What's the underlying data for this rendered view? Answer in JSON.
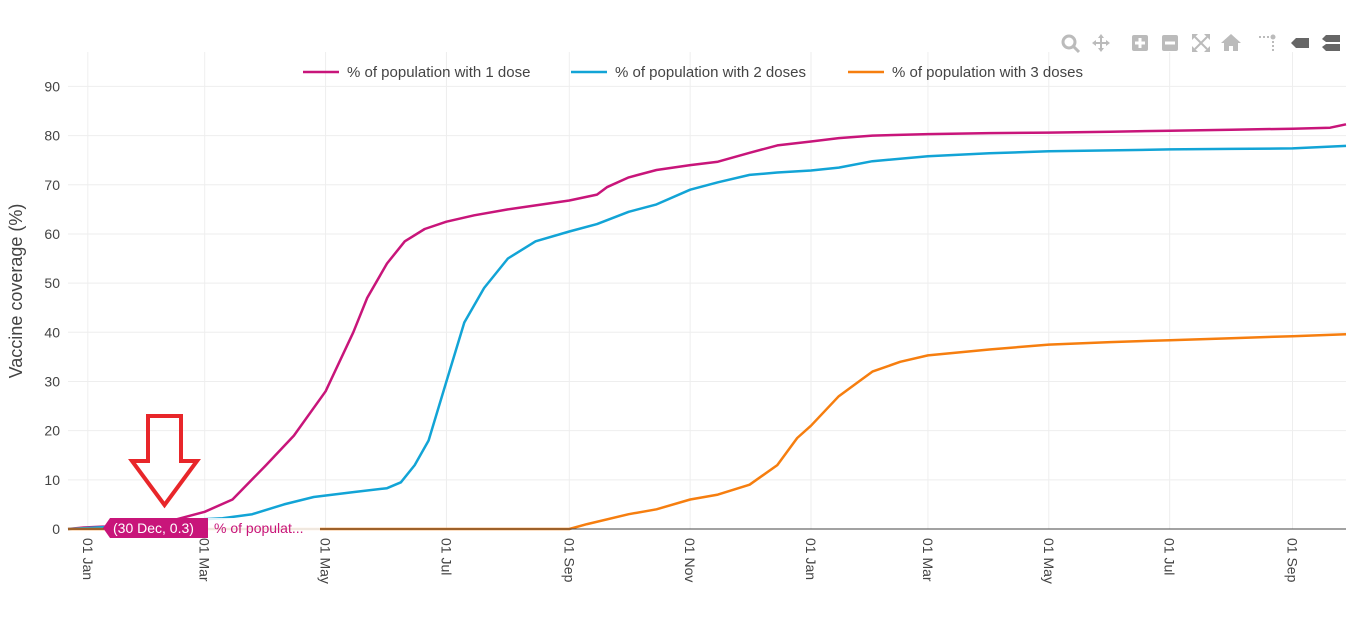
{
  "toolbar": {
    "icons": [
      "zoom-icon",
      "pan-icon",
      "zoom-in-icon",
      "zoom-out-icon",
      "autoscale-icon",
      "reset-axes-icon",
      "spike-lines-icon",
      "hover-closest-icon",
      "hover-compare-icon"
    ]
  },
  "tooltip": {
    "value_text": "(30 Dec, 0.3)",
    "series_text": "% of populat..."
  },
  "annotation": {
    "arrow_color": "#e8262a"
  },
  "chart_data": {
    "type": "line",
    "ylabel": "Vaccine coverage (%)",
    "xlabel": "",
    "ylim": [
      0,
      97
    ],
    "xlim": [
      "2020-12-22",
      "2022-09-28"
    ],
    "y_ticks": [
      0,
      10,
      20,
      30,
      40,
      50,
      60,
      70,
      80,
      90
    ],
    "x_ticks": [
      {
        "date": "2021-01-01",
        "label": "01 Jan"
      },
      {
        "date": "2021-03-01",
        "label": "01 Mar"
      },
      {
        "date": "2021-05-01",
        "label": "01 May"
      },
      {
        "date": "2021-07-01",
        "label": "01 Jul"
      },
      {
        "date": "2021-09-01",
        "label": "01 Sep"
      },
      {
        "date": "2021-11-01",
        "label": "01 Nov"
      },
      {
        "date": "2022-01-01",
        "label": "01 Jan"
      },
      {
        "date": "2022-03-01",
        "label": "01 Mar"
      },
      {
        "date": "2022-05-01",
        "label": "01 May"
      },
      {
        "date": "2022-07-01",
        "label": "01 Jul"
      },
      {
        "date": "2022-09-01",
        "label": "01 Sep"
      }
    ],
    "grid": true,
    "legend_position": "top-center",
    "series": [
      {
        "name": "% of population with 1 dose",
        "color": "#c8157a",
        "points": [
          [
            "2020-12-22",
            0
          ],
          [
            "2020-12-30",
            0.3
          ],
          [
            "2021-01-10",
            0.5
          ],
          [
            "2021-01-20",
            1
          ],
          [
            "2021-02-01",
            1.5
          ],
          [
            "2021-02-15",
            2.0
          ],
          [
            "2021-03-01",
            3.5
          ],
          [
            "2021-03-15",
            6
          ],
          [
            "2021-04-01",
            13
          ],
          [
            "2021-04-15",
            19
          ],
          [
            "2021-05-01",
            28
          ],
          [
            "2021-05-15",
            40
          ],
          [
            "2021-05-22",
            47
          ],
          [
            "2021-06-01",
            54
          ],
          [
            "2021-06-10",
            58.5
          ],
          [
            "2021-06-20",
            61
          ],
          [
            "2021-07-01",
            62.5
          ],
          [
            "2021-07-15",
            63.8
          ],
          [
            "2021-08-01",
            65
          ],
          [
            "2021-08-15",
            65.8
          ],
          [
            "2021-09-01",
            66.8
          ],
          [
            "2021-09-15",
            68
          ],
          [
            "2021-09-20",
            69.5
          ],
          [
            "2021-10-01",
            71.5
          ],
          [
            "2021-10-15",
            73
          ],
          [
            "2021-11-01",
            74
          ],
          [
            "2021-11-15",
            74.7
          ],
          [
            "2021-12-01",
            76.5
          ],
          [
            "2021-12-15",
            78
          ],
          [
            "2022-01-01",
            78.8
          ],
          [
            "2022-01-15",
            79.5
          ],
          [
            "2022-02-01",
            80
          ],
          [
            "2022-03-01",
            80.3
          ],
          [
            "2022-04-01",
            80.5
          ],
          [
            "2022-05-01",
            80.6
          ],
          [
            "2022-06-01",
            80.8
          ],
          [
            "2022-07-01",
            81
          ],
          [
            "2022-08-01",
            81.2
          ],
          [
            "2022-09-01",
            81.4
          ],
          [
            "2022-09-20",
            81.6
          ],
          [
            "2022-09-28",
            82.3
          ]
        ]
      },
      {
        "name": "% of population with 2 doses",
        "color": "#12a4d6",
        "points": [
          [
            "2020-12-22",
            0
          ],
          [
            "2021-01-15",
            0.5
          ],
          [
            "2021-02-01",
            1.2
          ],
          [
            "2021-02-20",
            1.8
          ],
          [
            "2021-03-10",
            2.2
          ],
          [
            "2021-03-25",
            3
          ],
          [
            "2021-04-10",
            5
          ],
          [
            "2021-04-25",
            6.5
          ],
          [
            "2021-05-15",
            7.5
          ],
          [
            "2021-06-01",
            8.3
          ],
          [
            "2021-06-08",
            9.5
          ],
          [
            "2021-06-15",
            13
          ],
          [
            "2021-06-22",
            18
          ],
          [
            "2021-07-01",
            30
          ],
          [
            "2021-07-10",
            42
          ],
          [
            "2021-07-20",
            49
          ],
          [
            "2021-08-01",
            55
          ],
          [
            "2021-08-15",
            58.5
          ],
          [
            "2021-09-01",
            60.5
          ],
          [
            "2021-09-15",
            62
          ],
          [
            "2021-10-01",
            64.5
          ],
          [
            "2021-10-15",
            66
          ],
          [
            "2021-11-01",
            69
          ],
          [
            "2021-11-15",
            70.5
          ],
          [
            "2021-12-01",
            72
          ],
          [
            "2021-12-15",
            72.5
          ],
          [
            "2022-01-01",
            72.9
          ],
          [
            "2022-01-15",
            73.5
          ],
          [
            "2022-02-01",
            74.8
          ],
          [
            "2022-03-01",
            75.8
          ],
          [
            "2022-04-01",
            76.4
          ],
          [
            "2022-05-01",
            76.8
          ],
          [
            "2022-06-01",
            77
          ],
          [
            "2022-07-01",
            77.2
          ],
          [
            "2022-08-01",
            77.3
          ],
          [
            "2022-09-01",
            77.4
          ],
          [
            "2022-09-28",
            77.9
          ]
        ]
      },
      {
        "name": "% of population with 3 doses",
        "color": "#f67e0f",
        "points": [
          [
            "2020-12-22",
            0
          ],
          [
            "2021-09-01",
            0
          ],
          [
            "2021-09-10",
            1
          ],
          [
            "2021-10-01",
            3
          ],
          [
            "2021-10-15",
            4
          ],
          [
            "2021-11-01",
            6
          ],
          [
            "2021-11-15",
            7
          ],
          [
            "2021-12-01",
            9
          ],
          [
            "2021-12-15",
            13
          ],
          [
            "2021-12-25",
            18.5
          ],
          [
            "2022-01-01",
            21
          ],
          [
            "2022-01-15",
            27
          ],
          [
            "2022-02-01",
            32
          ],
          [
            "2022-02-15",
            34
          ],
          [
            "2022-03-01",
            35.3
          ],
          [
            "2022-04-01",
            36.5
          ],
          [
            "2022-05-01",
            37.5
          ],
          [
            "2022-06-01",
            38
          ],
          [
            "2022-07-01",
            38.4
          ],
          [
            "2022-08-01",
            38.8
          ],
          [
            "2022-09-01",
            39.2
          ],
          [
            "2022-09-28",
            39.6
          ]
        ]
      }
    ]
  }
}
